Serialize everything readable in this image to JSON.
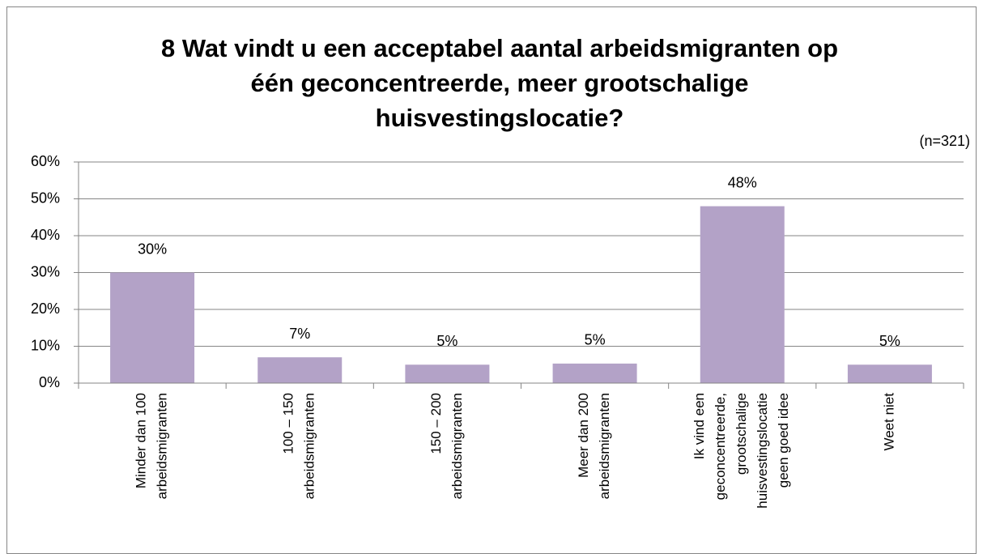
{
  "chart_data": {
    "type": "bar",
    "title": [
      "8 Wat vindt u een acceptabel aantal arbeidsmigranten op",
      "één geconcentreerde, meer grootschalige",
      "huisvestingslocatie?"
    ],
    "subtitle": "(n=321)",
    "categories": [
      [
        "Minder dan 100",
        "arbeidsmigranten"
      ],
      [
        "100 – 150",
        "arbeidsmigranten"
      ],
      [
        "150 – 200",
        "arbeidsmigranten"
      ],
      [
        "Meer dan 200",
        "arbeidsmigranten"
      ],
      [
        "Ik vind een",
        "geconcentreerde,",
        "grootschalige",
        "huisvestingslocatie",
        "geen goed idee"
      ],
      [
        "Weet niet"
      ]
    ],
    "values": [
      30,
      7,
      5,
      5.3,
      48,
      5
    ],
    "value_labels": [
      "30%",
      "7%",
      "5%",
      "5%",
      "48%",
      "5%"
    ],
    "color": "#b3a2c7",
    "ylim": [
      0,
      60
    ],
    "yticks": [
      {
        "value": 0,
        "label": "0%"
      },
      {
        "value": 10,
        "label": "10%"
      },
      {
        "value": 20,
        "label": "20%"
      },
      {
        "value": 30,
        "label": "30%"
      },
      {
        "value": 40,
        "label": "40%"
      },
      {
        "value": 50,
        "label": "50%"
      },
      {
        "value": 60,
        "label": "60%"
      }
    ],
    "grid": true
  }
}
